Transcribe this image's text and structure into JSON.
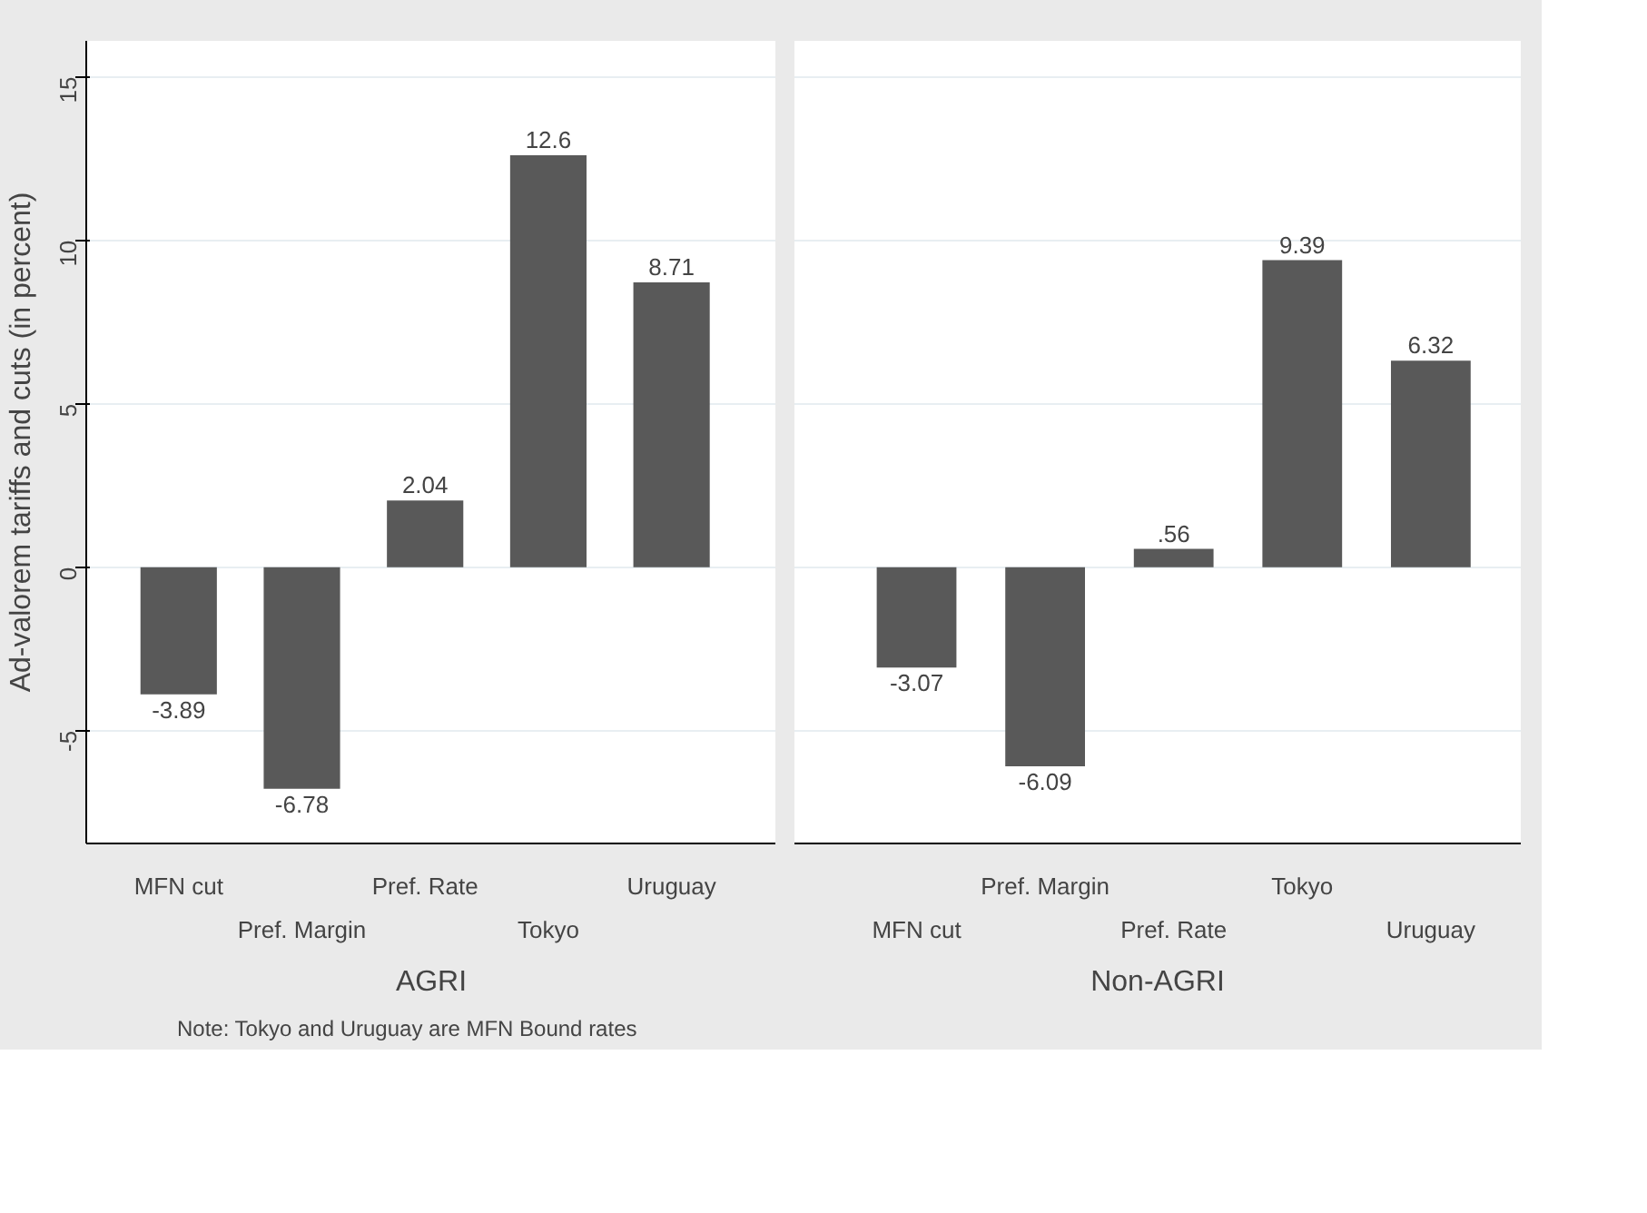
{
  "chart_data": [
    {
      "type": "bar",
      "categories": [
        "MFN cut",
        "Pref. Margin",
        "Pref. Rate",
        "Tokyo",
        "Uruguay"
      ],
      "values": [
        -3.89,
        -6.78,
        2.04,
        12.6,
        8.71
      ],
      "value_labels": [
        "-3.89",
        "-6.78",
        "2.04",
        "12.6",
        "8.71"
      ],
      "color": "#595959",
      "ylim": [
        -8.45,
        16.1
      ],
      "yticks": [
        -5,
        0,
        5,
        10,
        15
      ],
      "grid": "y",
      "ylabel": "Ad-valorem tariffs and cuts (in percent)",
      "xlabel": "AGRI",
      "annotations": [
        "Note: Tokyo and Uruguay are MFN Bound rates"
      ]
    },
    {
      "type": "bar",
      "categories": [
        "MFN cut",
        "Pref. Margin",
        "Pref. Rate",
        "Tokyo",
        "Uruguay"
      ],
      "values": [
        -3.07,
        -6.09,
        0.56,
        9.39,
        6.32
      ],
      "value_labels": [
        "-3.07",
        "-6.09",
        ".56",
        "9.39",
        "6.32"
      ],
      "color": "#595959",
      "ylim": [
        -8.45,
        16.1
      ],
      "yticks": [
        -5,
        0,
        5,
        10,
        15
      ],
      "grid": "y",
      "xlabel": "Non-AGRI",
      "tick_labels": "x"
    }
  ]
}
